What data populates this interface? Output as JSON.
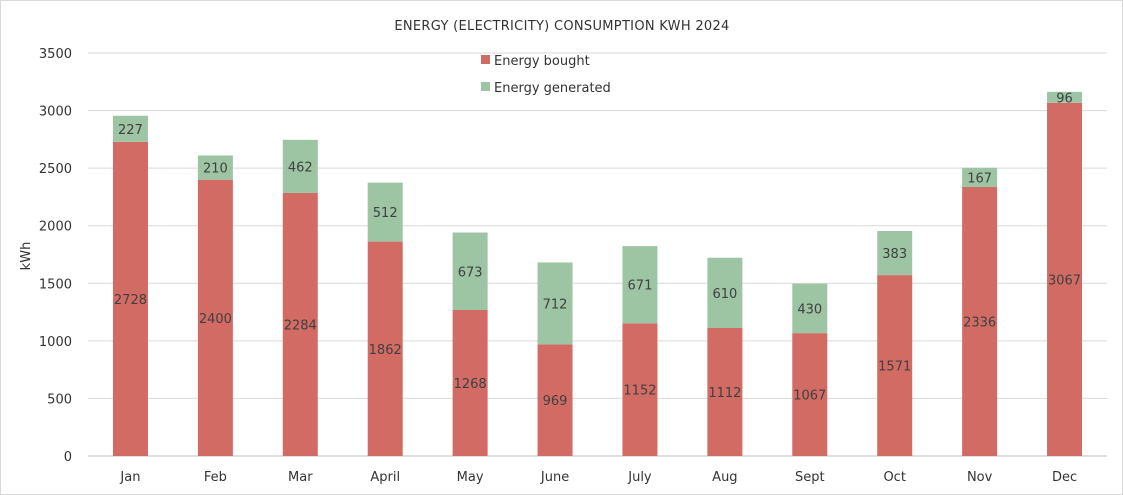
{
  "chart_data": {
    "type": "bar",
    "stacked": true,
    "title": "ENERGY (ELECTRICITY) CONSUMPTION KWH 2024",
    "ylabel": "kWh",
    "xlabel": "",
    "ylim": [
      0,
      3500
    ],
    "yticks": [
      0,
      500,
      1000,
      1500,
      2000,
      2500,
      3000,
      3500
    ],
    "grid": true,
    "legend_position": "top-center",
    "categories": [
      "Jan",
      "Feb",
      "Mar",
      "April",
      "May",
      "June",
      "July",
      "Aug",
      "Sept",
      "Oct",
      "Nov",
      "Dec"
    ],
    "series": [
      {
        "name": "Energy bought",
        "color": "#d26b64",
        "values": [
          2728,
          2400,
          2284,
          1862,
          1268,
          969,
          1152,
          1112,
          1067,
          1571,
          2336,
          3067
        ]
      },
      {
        "name": "Energy generated",
        "color": "#9dc5a3",
        "values": [
          227,
          210,
          462,
          512,
          673,
          712,
          671,
          610,
          430,
          383,
          167,
          96
        ]
      }
    ]
  },
  "colors": {
    "grid": "#d9d9d9",
    "axis": "#bfbfbf",
    "text": "#333333"
  }
}
